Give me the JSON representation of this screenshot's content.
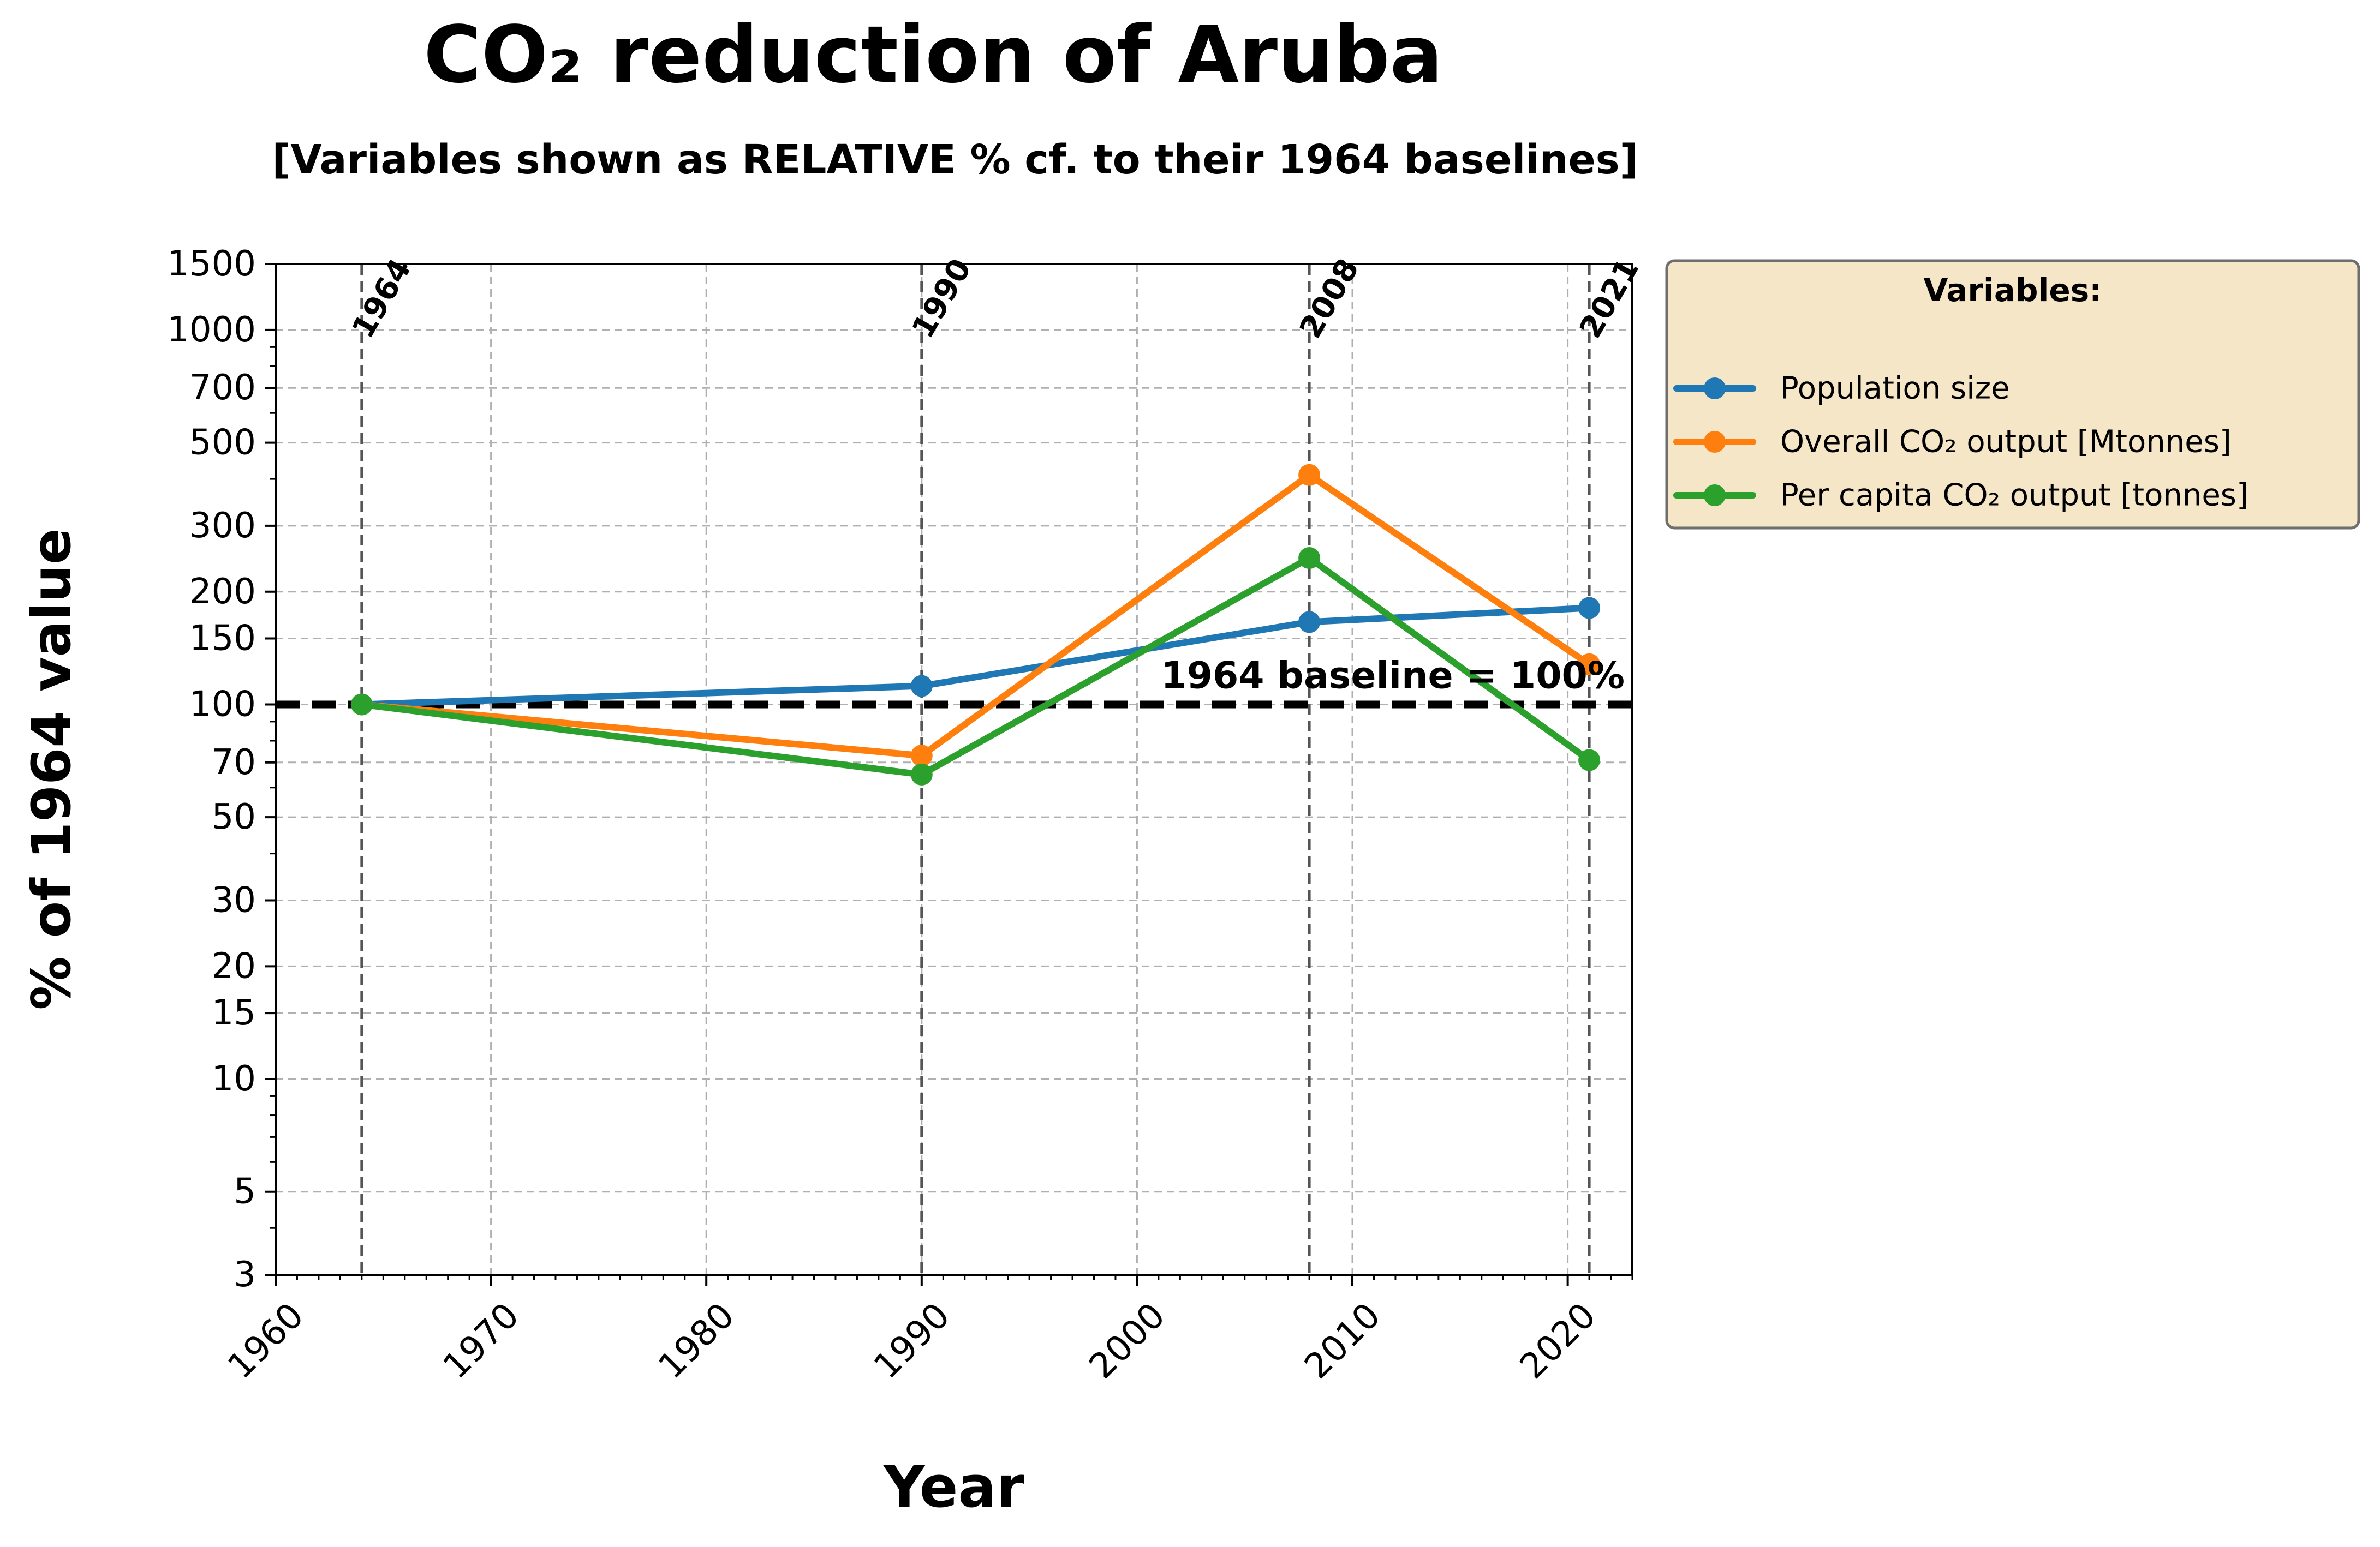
{
  "chart_data": {
    "type": "line",
    "title": "CO₂ reduction of Aruba",
    "subtitle": "[Variables shown as RELATIVE % cf. to their 1964 baselines]",
    "xlabel": "Year",
    "ylabel": "% of 1964 value",
    "y_scale": "log",
    "xlim": [
      1960,
      2023
    ],
    "ylim": [
      3,
      1500
    ],
    "x_ticks": [
      1960,
      1970,
      1980,
      1990,
      2000,
      2010,
      2020
    ],
    "y_ticks": [
      3,
      5,
      10,
      15,
      20,
      30,
      50,
      70,
      100,
      150,
      200,
      300,
      500,
      700,
      1000,
      1500
    ],
    "grid": true,
    "x": [
      1964,
      1990,
      2008,
      2021
    ],
    "series": [
      {
        "name": "Population size",
        "color": "#1f77b4",
        "values": [
          100,
          112,
          166,
          181
        ]
      },
      {
        "name": "Overall CO₂ output  [Mtonnes]",
        "color": "#ff7f0e",
        "values": [
          100,
          73,
          410,
          128
        ]
      },
      {
        "name": "Per capita CO₂ output  [tonnes]",
        "color": "#2ca02c",
        "values": [
          100,
          65,
          246,
          71
        ]
      }
    ],
    "vlines": [
      {
        "x": 1964,
        "label": "1964"
      },
      {
        "x": 1990,
        "label": "1990"
      },
      {
        "x": 2008,
        "label": "2008"
      },
      {
        "x": 2021,
        "label": "2021"
      }
    ],
    "baseline": {
      "y": 100,
      "label": "1964 baseline = 100%"
    },
    "legend": {
      "title": "Variables:",
      "placement": "outside upper right",
      "background": "#f5e6c8"
    }
  }
}
